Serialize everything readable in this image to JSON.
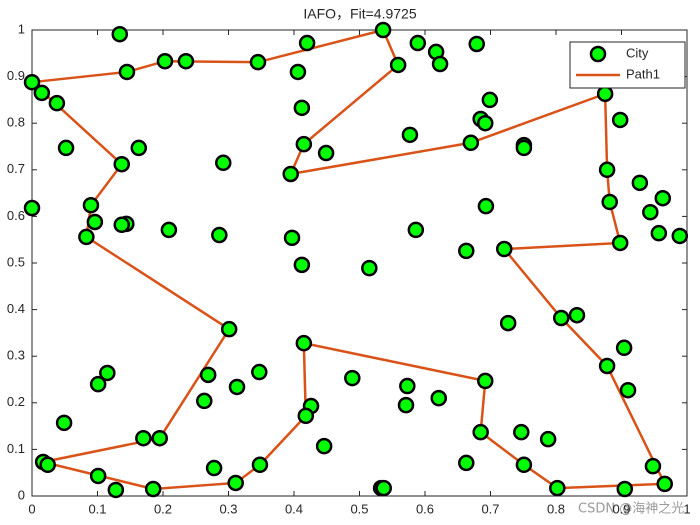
{
  "chart_data": {
    "type": "scatter",
    "title": "IAFO，Fit=4.9725",
    "annotation": "CSDN @海神之光",
    "xlim": [
      0,
      1
    ],
    "ylim": [
      0,
      1
    ],
    "xticks": [
      0,
      0.1,
      0.2,
      0.3,
      0.4,
      0.5,
      0.6,
      0.7,
      0.8,
      0.9,
      1
    ],
    "yticks": [
      0,
      0.1,
      0.2,
      0.3,
      0.4,
      0.5,
      0.6,
      0.7,
      0.8,
      0.9,
      1
    ],
    "legend": "upper right",
    "series": [
      {
        "name": "City",
        "color": "#00ff00",
        "x": [
          0.134,
          0,
          0.015,
          0.038,
          0.052,
          0,
          0.145,
          0.203,
          0.235,
          0.345,
          0.42,
          0.536,
          0.559,
          0.589,
          0.617,
          0.623,
          0.679,
          0.406,
          0.412,
          0.415,
          0.449,
          0.395,
          0.699,
          0.685,
          0.692,
          0.577,
          0.67,
          0.751,
          0.751,
          0.875,
          0.898,
          0.163,
          0.137,
          0.292,
          0.878,
          0.928,
          0.882,
          0.963,
          0.944,
          0.693,
          0.09,
          0.096,
          0.144,
          0.137,
          0.209,
          0.286,
          0.083,
          0.397,
          0.586,
          0.957,
          0.989,
          0.898,
          0.663,
          0.721,
          0.412,
          0.515,
          0.301,
          0.727,
          0.808,
          0.832,
          0.904,
          0.878,
          0.415,
          0.115,
          0.101,
          0.269,
          0.347,
          0.313,
          0.263,
          0.489,
          0.692,
          0.573,
          0.571,
          0.621,
          0.91,
          0.426,
          0.418,
          0.049,
          0.685,
          0.747,
          0.788,
          0.17,
          0.195,
          0.446,
          0.017,
          0.024,
          0.663,
          0.751,
          0.948,
          0.348,
          0.101,
          0.278,
          0.128,
          0.185,
          0.311,
          0.533,
          0.537,
          0.802,
          0.905,
          0.966
        ],
        "values": [
          0.991,
          0.888,
          0.865,
          0.843,
          0.747,
          0.618,
          0.91,
          0.933,
          0.933,
          0.931,
          0.972,
          1.0,
          0.925,
          0.972,
          0.953,
          0.927,
          0.97,
          0.91,
          0.833,
          0.755,
          0.736,
          0.691,
          0.85,
          0.809,
          0.8,
          0.775,
          0.758,
          0.753,
          0.747,
          0.863,
          0.807,
          0.747,
          0.712,
          0.715,
          0.7,
          0.672,
          0.631,
          0.639,
          0.609,
          0.622,
          0.624,
          0.588,
          0.584,
          0.582,
          0.571,
          0.56,
          0.556,
          0.554,
          0.571,
          0.564,
          0.558,
          0.543,
          0.526,
          0.53,
          0.496,
          0.489,
          0.358,
          0.371,
          0.382,
          0.388,
          0.318,
          0.279,
          0.328,
          0.264,
          0.24,
          0.26,
          0.266,
          0.234,
          0.204,
          0.253,
          0.247,
          0.236,
          0.195,
          0.21,
          0.227,
          0.193,
          0.172,
          0.157,
          0.137,
          0.137,
          0.122,
          0.124,
          0.124,
          0.107,
          0.073,
          0.067,
          0.071,
          0.067,
          0.064,
          0.067,
          0.043,
          0.06,
          0.013,
          0.015,
          0.028,
          0.017,
          0.017,
          0.017,
          0.015,
          0.026
        ]
      },
      {
        "name": "Path1",
        "color": "#d95319",
        "x": [
          0,
          0.145,
          0.203,
          0.345,
          0.536,
          0.559,
          0.415,
          0.395,
          0.67,
          0.875,
          0.878,
          0.882,
          0.898,
          0.721,
          0.808,
          0.878,
          0.966,
          0.802,
          0.751,
          0.685,
          0.692,
          0.415,
          0.418,
          0.348,
          0.311,
          0.185,
          0.017,
          0.195,
          0.301,
          0.083,
          0.09,
          0.137,
          0
        ],
        "values": [
          0.888,
          0.91,
          0.933,
          0.931,
          1.0,
          0.925,
          0.755,
          0.691,
          0.758,
          0.863,
          0.7,
          0.631,
          0.543,
          0.53,
          0.382,
          0.279,
          0.026,
          0.017,
          0.067,
          0.137,
          0.247,
          0.328,
          0.172,
          0.067,
          0.028,
          0.015,
          0.073,
          0.124,
          0.358,
          0.556,
          0.624,
          0.712,
          0.888
        ]
      }
    ]
  }
}
